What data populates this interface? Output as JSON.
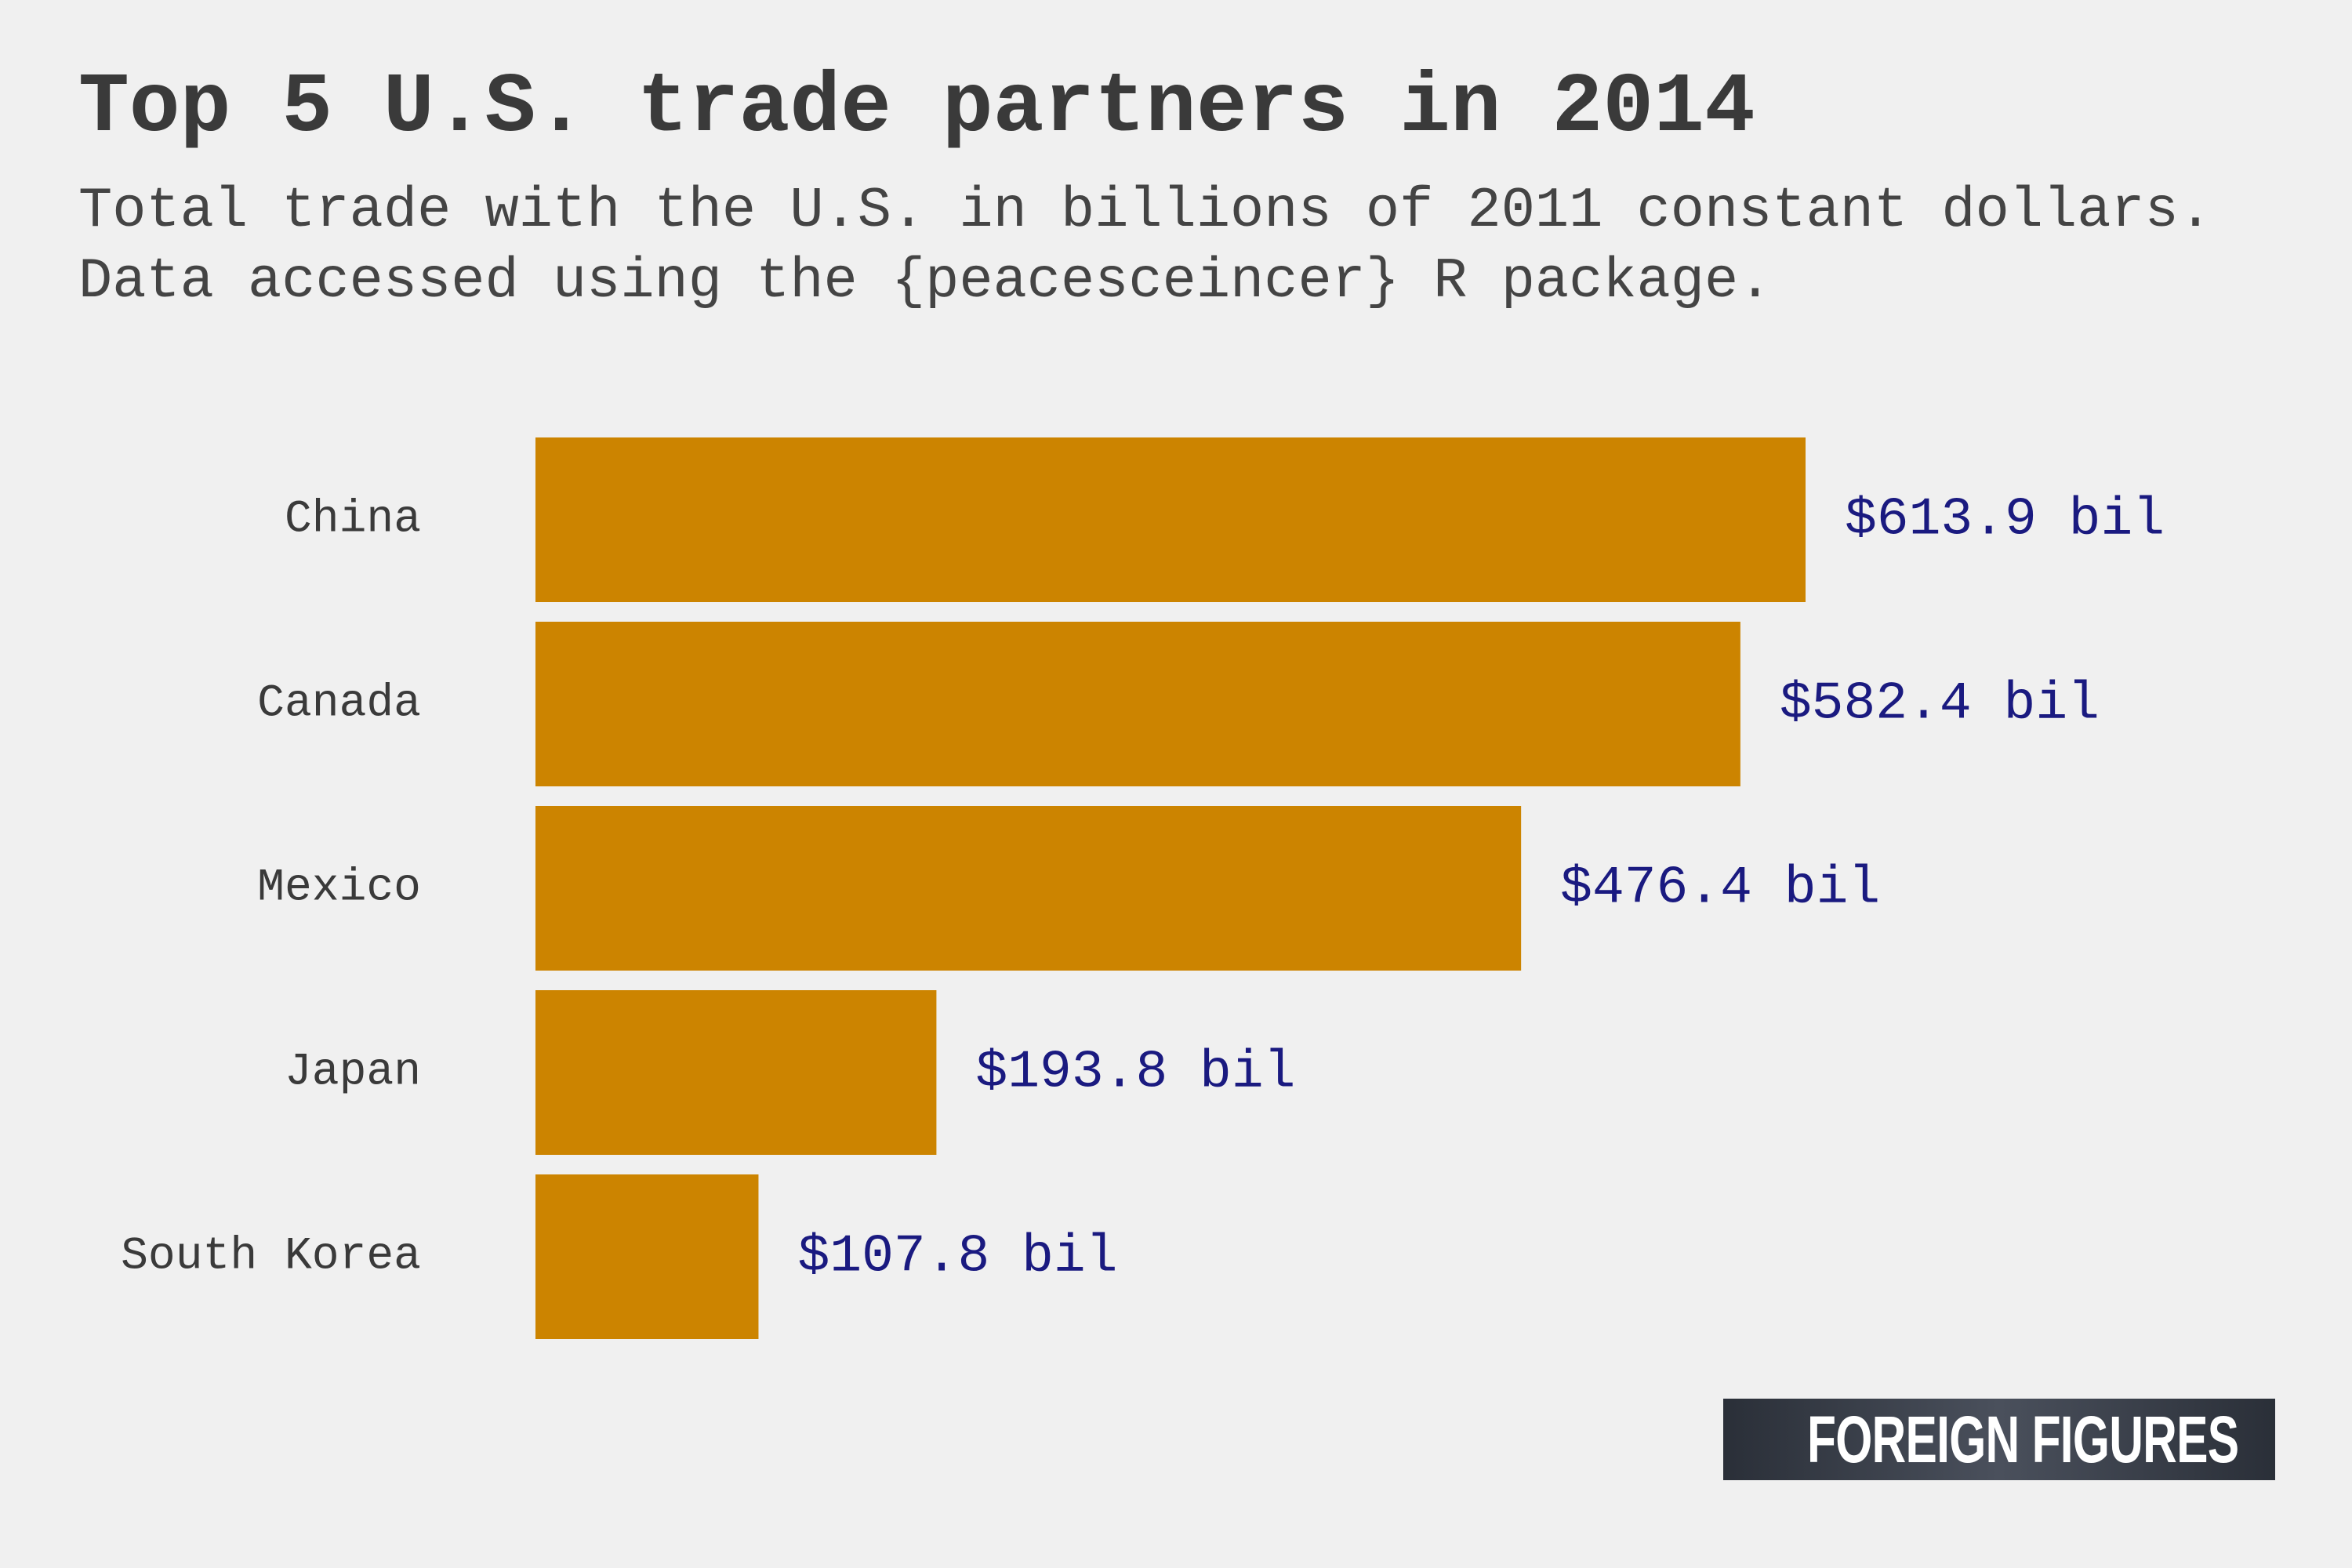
{
  "chart_data": {
    "type": "bar",
    "orientation": "horizontal",
    "title": "Top 5 U.S. trade partners in 2014",
    "subtitle": "Total trade with the U.S. in billions of 2011 constant dollars. Data accessed using the {peacesceincer} R package.",
    "categories": [
      "China",
      "Canada",
      "Mexico",
      "Japan",
      "South Korea"
    ],
    "values": [
      613.9,
      582.4,
      476.4,
      193.8,
      107.8
    ],
    "value_labels": [
      "$613.9 bil",
      "$582.4 bil",
      "$476.4 bil",
      "$193.8 bil",
      "$107.8 bil"
    ],
    "xlim": [
      0,
      613.9
    ],
    "grid": false,
    "legend": "none",
    "colors": {
      "bar": "#cc8400",
      "value_label": "#1a1a80",
      "text": "#3a3a3a",
      "background": "#f0f0f0"
    }
  },
  "brand": {
    "logo_text": "FOREIGN FIGURES"
  }
}
